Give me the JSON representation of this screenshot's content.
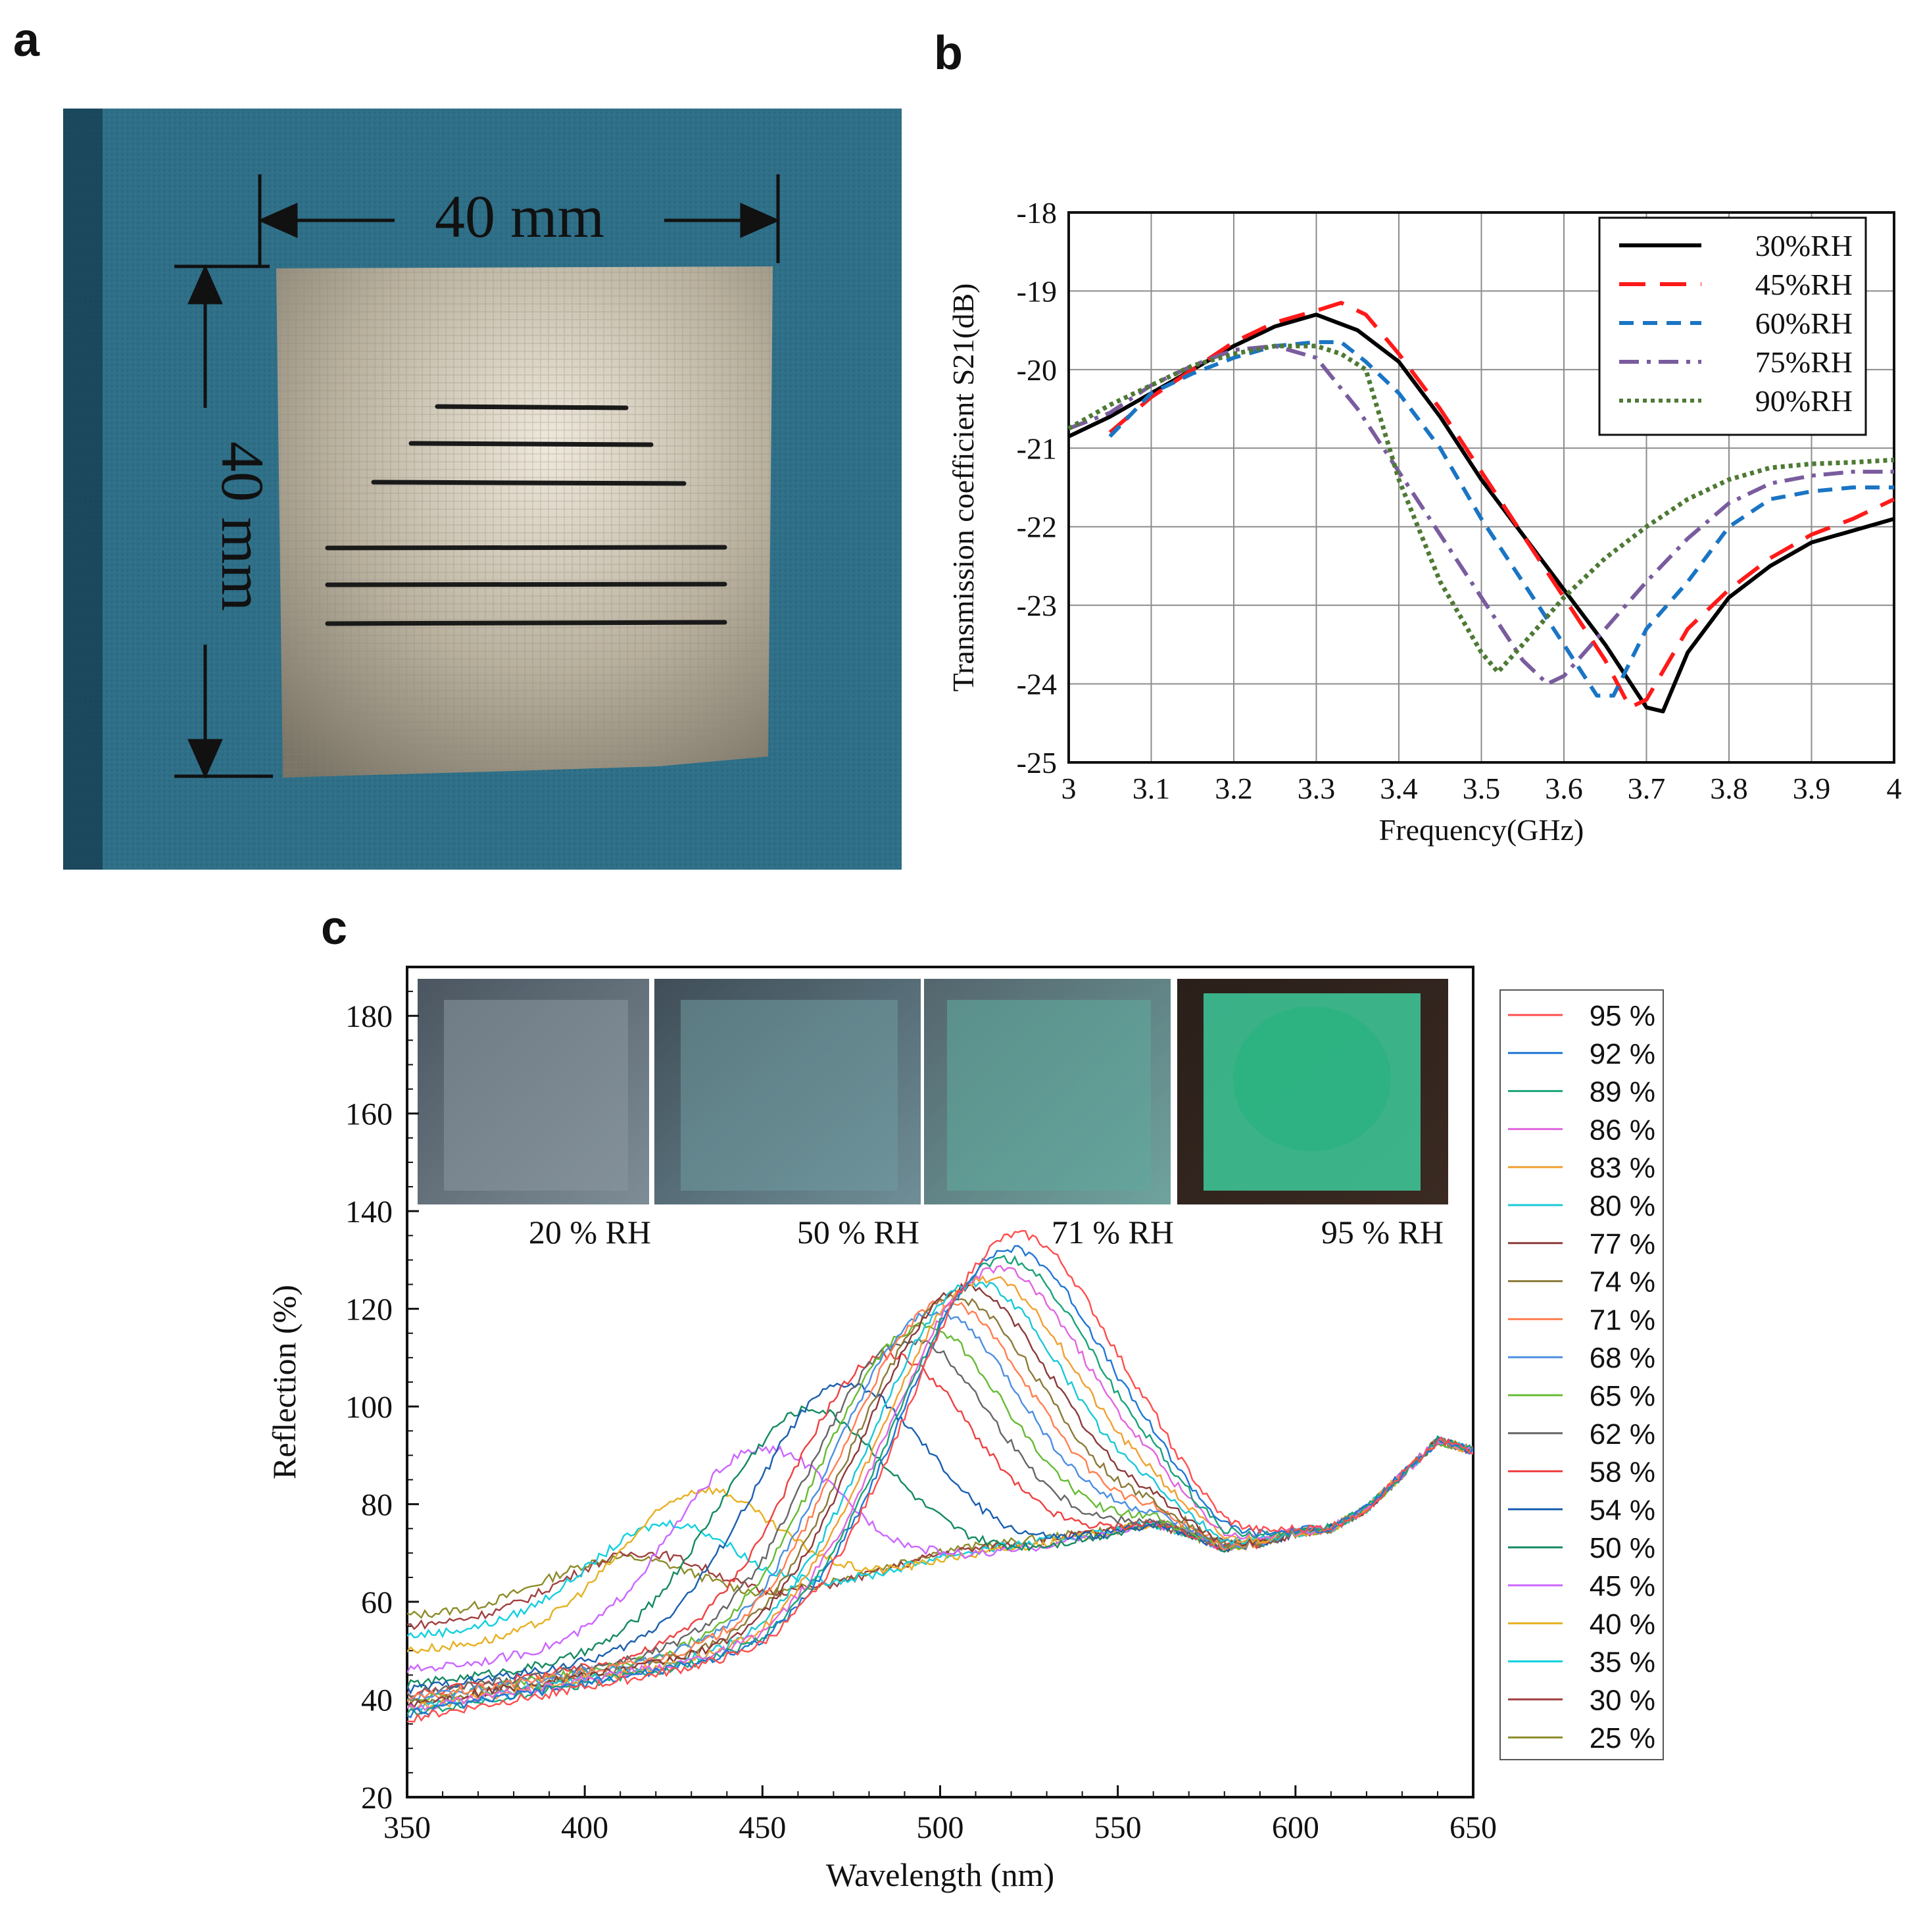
{
  "panels": {
    "a": "a",
    "b": "b",
    "c": "c"
  },
  "photo": {
    "width_label": "40 mm",
    "height_label": "40 mm",
    "colors": {
      "background": "#2f6f88",
      "plate": "#b8b09c",
      "line": "#1a1a1a"
    }
  },
  "chart_data": [
    {
      "id": "b",
      "type": "line",
      "title": "",
      "xlabel": "Frequency(GHz)",
      "ylabel": "Transmission coefficient S21(dB)",
      "xlim": [
        3,
        4
      ],
      "ylim": [
        -25,
        -18
      ],
      "xticks": [
        "3",
        "3.1",
        "3.2",
        "3.3",
        "3.4",
        "3.5",
        "3.6",
        "3.7",
        "3.8",
        "3.9",
        "4"
      ],
      "yticks": [
        "-25",
        "-24",
        "-23",
        "-22",
        "-21",
        "-20",
        "-19",
        "-18"
      ],
      "grid": true,
      "legend": "top-right",
      "series": [
        {
          "name": "30%RH",
          "color": "#000000",
          "dash": "solid",
          "x": [
            3.0,
            3.05,
            3.1,
            3.15,
            3.2,
            3.25,
            3.3,
            3.35,
            3.4,
            3.45,
            3.5,
            3.55,
            3.6,
            3.65,
            3.7,
            3.72,
            3.75,
            3.8,
            3.85,
            3.9,
            3.95,
            4.0
          ],
          "y": [
            -20.85,
            -20.6,
            -20.3,
            -20.0,
            -19.7,
            -19.45,
            -19.3,
            -19.5,
            -19.9,
            -20.6,
            -21.4,
            -22.1,
            -22.8,
            -23.5,
            -24.3,
            -24.35,
            -23.6,
            -22.9,
            -22.5,
            -22.2,
            -22.05,
            -21.9
          ]
        },
        {
          "name": "45%RH",
          "color": "#ff1a1a",
          "dash": "long",
          "x": [
            3.05,
            3.1,
            3.15,
            3.2,
            3.25,
            3.3,
            3.33,
            3.36,
            3.4,
            3.45,
            3.5,
            3.55,
            3.6,
            3.65,
            3.68,
            3.7,
            3.75,
            3.8,
            3.85,
            3.9,
            3.95,
            4.0
          ],
          "y": [
            -20.8,
            -20.35,
            -20.0,
            -19.65,
            -19.4,
            -19.25,
            -19.15,
            -19.3,
            -19.8,
            -20.5,
            -21.3,
            -22.1,
            -22.9,
            -23.7,
            -24.3,
            -24.2,
            -23.3,
            -22.8,
            -22.4,
            -22.1,
            -21.9,
            -21.65
          ]
        },
        {
          "name": "60%RH",
          "color": "#1a75c4",
          "dash": "medium",
          "x": [
            3.05,
            3.1,
            3.15,
            3.2,
            3.25,
            3.3,
            3.33,
            3.36,
            3.4,
            3.45,
            3.5,
            3.55,
            3.6,
            3.64,
            3.66,
            3.7,
            3.75,
            3.8,
            3.85,
            3.9,
            3.95,
            4.0
          ],
          "y": [
            -20.85,
            -20.3,
            -20.05,
            -19.85,
            -19.7,
            -19.65,
            -19.65,
            -19.9,
            -20.3,
            -21.0,
            -21.9,
            -22.7,
            -23.5,
            -24.15,
            -24.15,
            -23.3,
            -22.7,
            -22.0,
            -21.65,
            -21.55,
            -21.5,
            -21.5
          ]
        },
        {
          "name": "75%RH",
          "color": "#7a5c9e",
          "dash": "dashdot",
          "x": [
            3.0,
            3.05,
            3.1,
            3.15,
            3.2,
            3.25,
            3.3,
            3.35,
            3.4,
            3.45,
            3.5,
            3.55,
            3.58,
            3.6,
            3.65,
            3.7,
            3.75,
            3.8,
            3.85,
            3.9,
            3.95,
            4.0
          ],
          "y": [
            -20.75,
            -20.55,
            -20.2,
            -19.95,
            -19.75,
            -19.7,
            -19.85,
            -20.5,
            -21.3,
            -22.1,
            -22.9,
            -23.7,
            -24.0,
            -23.9,
            -23.3,
            -22.7,
            -22.15,
            -21.7,
            -21.45,
            -21.35,
            -21.3,
            -21.3
          ]
        },
        {
          "name": "90%RH",
          "color": "#4e7a34",
          "dash": "dotted",
          "x": [
            3.0,
            3.05,
            3.1,
            3.15,
            3.2,
            3.25,
            3.3,
            3.33,
            3.36,
            3.4,
            3.45,
            3.5,
            3.52,
            3.55,
            3.6,
            3.65,
            3.7,
            3.75,
            3.8,
            3.85,
            3.9,
            3.95,
            4.0
          ],
          "y": [
            -20.75,
            -20.45,
            -20.2,
            -19.95,
            -19.8,
            -19.7,
            -19.7,
            -19.8,
            -20.0,
            -21.4,
            -22.7,
            -23.6,
            -23.85,
            -23.5,
            -22.9,
            -22.4,
            -22.0,
            -21.65,
            -21.4,
            -21.25,
            -21.2,
            -21.18,
            -21.15
          ]
        }
      ]
    },
    {
      "id": "c",
      "type": "line",
      "title": "",
      "xlabel": "Wavelength (nm)",
      "ylabel": "Reflection (%)",
      "xlim": [
        350,
        650
      ],
      "ylim": [
        20,
        190
      ],
      "xticks": [
        "350",
        "400",
        "450",
        "500",
        "550",
        "600",
        "650"
      ],
      "yticks": [
        "20",
        "40",
        "60",
        "80",
        "100",
        "120",
        "140",
        "160",
        "180"
      ],
      "grid": false,
      "legend": "right",
      "inset_labels": [
        "20 % RH",
        "50 % RH",
        "71 % RH",
        "95 % RH"
      ],
      "baseline_shape": {
        "x": [
          350,
          400,
          450,
          500,
          550,
          560,
          570,
          580,
          590,
          600,
          610,
          620,
          630,
          640,
          650
        ],
        "y": [
          38,
          44,
          50,
          65,
          74,
          76,
          74,
          71,
          72,
          74,
          75,
          79,
          86,
          93,
          91
        ]
      },
      "series": [
        {
          "name": "95 %",
          "color": "#ff4d4d",
          "peak_x": 520,
          "peak_y": 135,
          "base_start": 36
        },
        {
          "name": "92 %",
          "color": "#1f77d4",
          "peak_x": 518,
          "peak_y": 132,
          "base_start": 37
        },
        {
          "name": "89 %",
          "color": "#1aa37a",
          "peak_x": 516,
          "peak_y": 130,
          "base_start": 37
        },
        {
          "name": "86 %",
          "color": "#e066e0",
          "peak_x": 514,
          "peak_y": 128,
          "base_start": 38
        },
        {
          "name": "83 %",
          "color": "#f0a030",
          "peak_x": 511,
          "peak_y": 126,
          "base_start": 38
        },
        {
          "name": "80 %",
          "color": "#1ac8d8",
          "peak_x": 508,
          "peak_y": 125,
          "base_start": 38
        },
        {
          "name": "77 %",
          "color": "#8b3a3a",
          "peak_x": 505,
          "peak_y": 124,
          "base_start": 39
        },
        {
          "name": "74 %",
          "color": "#8a7a3a",
          "peak_x": 502,
          "peak_y": 122,
          "base_start": 39
        },
        {
          "name": "71 %",
          "color": "#ff7f50",
          "peak_x": 499,
          "peak_y": 121,
          "base_start": 40
        },
        {
          "name": "68 %",
          "color": "#4d8fe0",
          "peak_x": 496,
          "peak_y": 119,
          "base_start": 40
        },
        {
          "name": "65 %",
          "color": "#66bb33",
          "peak_x": 492,
          "peak_y": 116,
          "base_start": 40
        },
        {
          "name": "62 %",
          "color": "#666666",
          "peak_x": 488,
          "peak_y": 113,
          "base_start": 41
        },
        {
          "name": "58 %",
          "color": "#f04040",
          "peak_x": 482,
          "peak_y": 110,
          "base_start": 41
        },
        {
          "name": "54 %",
          "color": "#1a5fb0",
          "peak_x": 470,
          "peak_y": 104,
          "base_start": 42
        },
        {
          "name": "50 %",
          "color": "#148a60",
          "peak_x": 460,
          "peak_y": 99,
          "base_start": 43
        },
        {
          "name": "45 %",
          "color": "#cc66ff",
          "peak_x": 448,
          "peak_y": 91,
          "base_start": 46
        },
        {
          "name": "40 %",
          "color": "#e6b020",
          "peak_x": 433,
          "peak_y": 83,
          "base_start": 50
        },
        {
          "name": "35 %",
          "color": "#10d0e0",
          "peak_x": 423,
          "peak_y": 76,
          "base_start": 53
        },
        {
          "name": "30 %",
          "color": "#a04040",
          "peak_x": 415,
          "peak_y": 70,
          "base_start": 55
        },
        {
          "name": "25 %",
          "color": "#8c8c2a",
          "peak_x": 410,
          "peak_y": 69,
          "base_start": 57
        }
      ]
    }
  ]
}
